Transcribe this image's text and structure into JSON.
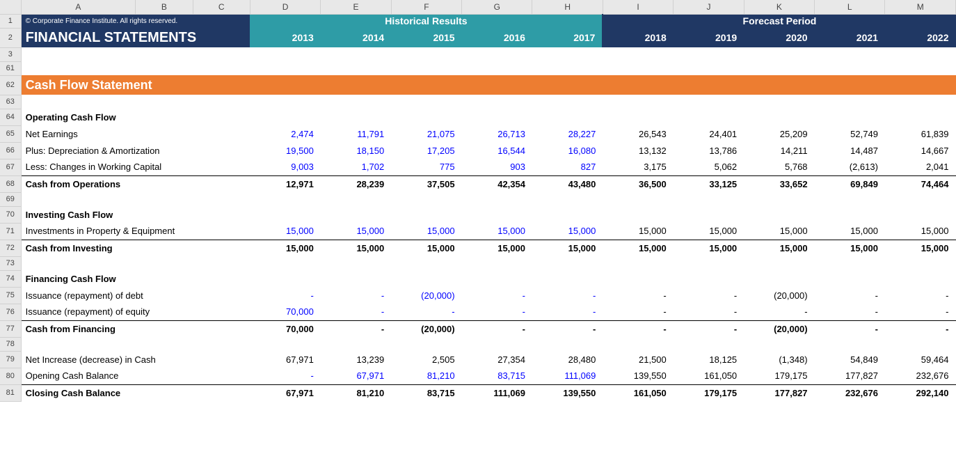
{
  "colheaders": [
    "A",
    "B",
    "C",
    "D",
    "E",
    "F",
    "G",
    "H",
    "I",
    "J",
    "K",
    "L",
    "M"
  ],
  "copyright": "© Corporate Finance Institute. All rights reserved.",
  "title": "FINANCIAL STATEMENTS",
  "period_historical_label": "Historical Results",
  "period_forecast_label": "Forecast Period",
  "years": [
    "2013",
    "2014",
    "2015",
    "2016",
    "2017",
    "2018",
    "2019",
    "2020",
    "2021",
    "2022"
  ],
  "section_title": "Cash Flow Statement",
  "rows": {
    "ocf_header": "Operating Cash Flow",
    "net_earnings": {
      "label": "Net Earnings",
      "vals": [
        "2,474",
        "11,791",
        "21,075",
        "26,713",
        "28,227",
        "26,543",
        "24,401",
        "25,209",
        "52,749",
        "61,839"
      ]
    },
    "deprec": {
      "label": "Plus: Depreciation & Amortization",
      "vals": [
        "19,500",
        "18,150",
        "17,205",
        "16,544",
        "16,080",
        "13,132",
        "13,786",
        "14,211",
        "14,487",
        "14,667"
      ]
    },
    "wc": {
      "label": "Less: Changes in Working Capital",
      "vals": [
        "9,003",
        "1,702",
        "775",
        "903",
        "827",
        "3,175",
        "5,062",
        "5,768",
        "(2,613)",
        "2,041"
      ]
    },
    "cash_ops": {
      "label": "Cash from Operations",
      "vals": [
        "12,971",
        "28,239",
        "37,505",
        "42,354",
        "43,480",
        "36,500",
        "33,125",
        "33,652",
        "69,849",
        "74,464"
      ]
    },
    "icf_header": "Investing Cash Flow",
    "ppe": {
      "label": "Investments in Property & Equipment",
      "vals": [
        "15,000",
        "15,000",
        "15,000",
        "15,000",
        "15,000",
        "15,000",
        "15,000",
        "15,000",
        "15,000",
        "15,000"
      ]
    },
    "cash_inv": {
      "label": "Cash from Investing",
      "vals": [
        "15,000",
        "15,000",
        "15,000",
        "15,000",
        "15,000",
        "15,000",
        "15,000",
        "15,000",
        "15,000",
        "15,000"
      ]
    },
    "fcf_header": "Financing Cash Flow",
    "debt": {
      "label": "Issuance (repayment) of debt",
      "vals": [
        "-",
        "-",
        "(20,000)",
        "-",
        "-",
        "-",
        "-",
        "(20,000)",
        "-",
        "-"
      ]
    },
    "equity": {
      "label": "Issuance (repayment) of equity",
      "vals": [
        "70,000",
        "-",
        "-",
        "-",
        "-",
        "-",
        "-",
        "-",
        "-",
        "-"
      ]
    },
    "cash_fin": {
      "label": "Cash from Financing",
      "vals": [
        "70,000",
        "-",
        "(20,000)",
        "-",
        "-",
        "-",
        "-",
        "(20,000)",
        "-",
        "-"
      ]
    },
    "net_inc": {
      "label": "Net Increase (decrease) in Cash",
      "vals": [
        "67,971",
        "13,239",
        "2,505",
        "27,354",
        "28,480",
        "21,500",
        "18,125",
        "(1,348)",
        "54,849",
        "59,464"
      ]
    },
    "open_bal": {
      "label": "Opening Cash Balance",
      "vals": [
        "-",
        "67,971",
        "81,210",
        "83,715",
        "111,069",
        "139,550",
        "161,050",
        "179,175",
        "177,827",
        "232,676"
      ]
    },
    "close_bal": {
      "label": "Closing Cash Balance",
      "vals": [
        "67,971",
        "81,210",
        "83,715",
        "111,069",
        "139,550",
        "161,050",
        "179,175",
        "177,827",
        "232,676",
        "292,140"
      ]
    }
  },
  "row_numbers": [
    "1",
    "2",
    "3",
    "61",
    "62",
    "63",
    "64",
    "65",
    "66",
    "67",
    "68",
    "69",
    "70",
    "71",
    "72",
    "73",
    "74",
    "75",
    "76",
    "77",
    "78",
    "79",
    "80",
    "81"
  ],
  "style": {
    "navy": "#203864",
    "teal": "#2e9ca6",
    "orange": "#ed7d31",
    "blue_text": "#0000ff",
    "historical_cols": 5,
    "forecast_cols": 5
  }
}
